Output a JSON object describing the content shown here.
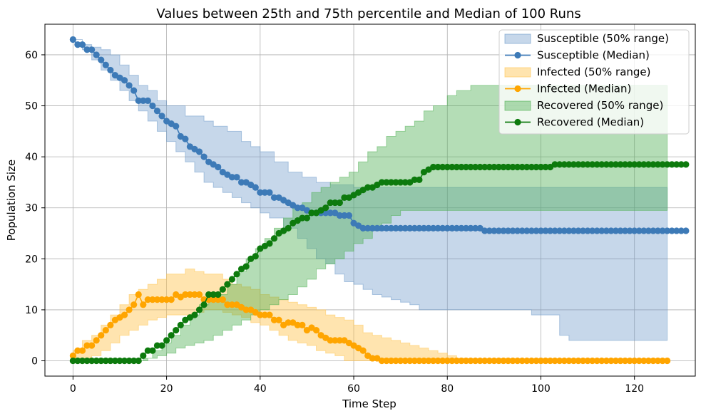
{
  "chart_data": {
    "type": "line",
    "title": "Values between 25th and 75th percentile and Median of 100 Runs",
    "xlabel": "Time Step",
    "ylabel": "Population Size",
    "xlim": [
      -6,
      133
    ],
    "ylim": [
      -3,
      66
    ],
    "xticks": [
      0,
      20,
      40,
      60,
      80,
      100,
      120
    ],
    "yticks": [
      0,
      10,
      20,
      30,
      40,
      50,
      60
    ],
    "grid": true,
    "legend_position": "top-right",
    "x_start": 0,
    "x_step": 1,
    "bands": [
      {
        "name": "Susceptible (50% range)",
        "color": "#6a97c8",
        "opacity": 0.38,
        "upper_keypoints": [
          [
            0,
            63
          ],
          [
            2,
            62
          ],
          [
            4,
            61.5
          ],
          [
            6,
            61
          ],
          [
            8,
            60
          ],
          [
            10,
            58
          ],
          [
            12,
            56
          ],
          [
            14,
            54
          ],
          [
            16,
            53
          ],
          [
            18,
            51
          ],
          [
            20,
            50
          ],
          [
            24,
            48
          ],
          [
            28,
            47
          ],
          [
            30,
            46
          ],
          [
            33,
            45
          ],
          [
            36,
            43
          ],
          [
            38,
            42
          ],
          [
            40,
            41
          ],
          [
            43,
            39
          ],
          [
            46,
            37
          ],
          [
            49,
            36
          ],
          [
            52,
            35
          ],
          [
            55,
            34.5
          ],
          [
            60,
            34
          ],
          [
            62,
            34
          ],
          [
            80,
            34
          ],
          [
            127,
            34
          ]
        ],
        "lower_keypoints": [
          [
            0,
            63
          ],
          [
            2,
            61
          ],
          [
            4,
            59
          ],
          [
            6,
            57
          ],
          [
            8,
            55
          ],
          [
            10,
            53
          ],
          [
            12,
            51
          ],
          [
            14,
            49
          ],
          [
            16,
            47
          ],
          [
            18,
            45
          ],
          [
            20,
            43
          ],
          [
            22,
            41
          ],
          [
            24,
            39
          ],
          [
            26,
            37
          ],
          [
            28,
            35
          ],
          [
            30,
            34
          ],
          [
            32,
            33
          ],
          [
            34,
            32
          ],
          [
            36,
            31
          ],
          [
            38,
            30
          ],
          [
            40,
            29
          ],
          [
            42,
            28
          ],
          [
            45,
            26
          ],
          [
            48,
            24
          ],
          [
            50,
            22
          ],
          [
            52,
            20
          ],
          [
            54,
            19
          ],
          [
            56,
            17
          ],
          [
            58,
            15.5
          ],
          [
            60,
            15
          ],
          [
            62,
            14
          ],
          [
            64,
            13
          ],
          [
            66,
            12.5
          ],
          [
            68,
            12
          ],
          [
            70,
            11.5
          ],
          [
            72,
            11
          ],
          [
            74,
            10
          ],
          [
            80,
            10
          ],
          [
            90,
            10
          ],
          [
            98,
            9
          ],
          [
            104,
            5
          ],
          [
            106,
            4
          ],
          [
            127,
            4
          ]
        ]
      },
      {
        "name": "Infected (50% range)",
        "color": "#ffc34d",
        "opacity": 0.45,
        "upper_keypoints": [
          [
            0,
            2
          ],
          [
            2,
            4
          ],
          [
            4,
            5
          ],
          [
            6,
            7
          ],
          [
            8,
            9
          ],
          [
            10,
            11
          ],
          [
            12,
            13
          ],
          [
            14,
            14
          ],
          [
            16,
            15
          ],
          [
            18,
            16
          ],
          [
            20,
            17
          ],
          [
            22,
            17
          ],
          [
            24,
            18
          ],
          [
            26,
            17.5
          ],
          [
            28,
            17
          ],
          [
            30,
            17
          ],
          [
            32,
            16
          ],
          [
            34,
            15
          ],
          [
            36,
            14.5
          ],
          [
            38,
            14
          ],
          [
            40,
            13
          ],
          [
            42,
            12.5
          ],
          [
            44,
            12
          ],
          [
            46,
            11.5
          ],
          [
            48,
            11
          ],
          [
            50,
            10.5
          ],
          [
            52,
            10
          ],
          [
            54,
            9
          ],
          [
            56,
            8.5
          ],
          [
            58,
            8
          ],
          [
            60,
            7
          ],
          [
            62,
            5.5
          ],
          [
            64,
            5
          ],
          [
            66,
            4.5
          ],
          [
            68,
            4
          ],
          [
            70,
            3.5
          ],
          [
            72,
            3
          ],
          [
            74,
            2.5
          ],
          [
            76,
            2
          ],
          [
            78,
            1.5
          ],
          [
            80,
            1
          ],
          [
            82,
            0.5
          ],
          [
            84,
            0
          ],
          [
            127,
            0
          ]
        ],
        "lower_keypoints": [
          [
            0,
            0
          ],
          [
            2,
            0.5
          ],
          [
            4,
            1
          ],
          [
            6,
            2
          ],
          [
            8,
            3.5
          ],
          [
            10,
            5
          ],
          [
            12,
            6
          ],
          [
            14,
            7
          ],
          [
            16,
            8
          ],
          [
            18,
            8.5
          ],
          [
            20,
            9
          ],
          [
            22,
            9
          ],
          [
            24,
            9
          ],
          [
            26,
            9.5
          ],
          [
            28,
            10
          ],
          [
            30,
            10
          ],
          [
            32,
            9.5
          ],
          [
            34,
            9
          ],
          [
            36,
            8.5
          ],
          [
            38,
            7.5
          ],
          [
            40,
            7
          ],
          [
            42,
            6
          ],
          [
            44,
            5
          ],
          [
            46,
            4
          ],
          [
            48,
            3.5
          ],
          [
            50,
            3
          ],
          [
            52,
            2
          ],
          [
            54,
            1.5
          ],
          [
            56,
            1
          ],
          [
            58,
            0
          ],
          [
            127,
            0
          ]
        ]
      },
      {
        "name": "Recovered (50% range)",
        "color": "#4caf50",
        "opacity": 0.42,
        "upper_keypoints": [
          [
            0,
            0
          ],
          [
            13,
            0
          ],
          [
            15,
            0.5
          ],
          [
            17,
            2
          ],
          [
            19,
            3.5
          ],
          [
            21,
            5
          ],
          [
            23,
            7
          ],
          [
            25,
            9
          ],
          [
            27,
            11
          ],
          [
            29,
            12
          ],
          [
            31,
            13
          ],
          [
            33,
            15
          ],
          [
            35,
            17.5
          ],
          [
            37,
            20
          ],
          [
            39,
            22
          ],
          [
            41,
            24
          ],
          [
            43,
            26
          ],
          [
            45,
            28
          ],
          [
            47,
            30
          ],
          [
            49,
            31
          ],
          [
            51,
            33
          ],
          [
            53,
            34
          ],
          [
            55,
            35
          ],
          [
            57,
            36
          ],
          [
            59,
            37
          ],
          [
            61,
            39
          ],
          [
            63,
            41
          ],
          [
            65,
            42
          ],
          [
            67,
            44
          ],
          [
            69,
            45
          ],
          [
            71,
            46
          ],
          [
            73,
            47
          ],
          [
            75,
            49
          ],
          [
            77,
            50
          ],
          [
            80,
            52
          ],
          [
            82,
            53
          ],
          [
            85,
            54
          ],
          [
            100,
            54
          ],
          [
            127,
            54
          ]
        ],
        "lower_keypoints": [
          [
            0,
            0
          ],
          [
            14,
            0
          ],
          [
            16,
            0.5
          ],
          [
            18,
            1
          ],
          [
            20,
            1.5
          ],
          [
            22,
            2.5
          ],
          [
            24,
            3
          ],
          [
            26,
            3.5
          ],
          [
            28,
            4
          ],
          [
            30,
            5
          ],
          [
            32,
            6
          ],
          [
            34,
            7
          ],
          [
            36,
            8
          ],
          [
            38,
            9
          ],
          [
            40,
            10
          ],
          [
            42,
            11
          ],
          [
            44,
            12
          ],
          [
            46,
            13
          ],
          [
            48,
            14.5
          ],
          [
            50,
            16
          ],
          [
            52,
            18
          ],
          [
            54,
            19
          ],
          [
            56,
            20
          ],
          [
            58,
            21.5
          ],
          [
            60,
            23
          ],
          [
            62,
            24
          ],
          [
            64,
            25.5
          ],
          [
            66,
            27
          ],
          [
            68,
            28.5
          ],
          [
            70,
            29.5
          ],
          [
            80,
            29.5
          ],
          [
            127,
            29.5
          ]
        ]
      }
    ],
    "series": [
      {
        "name": "Susceptible (Median)",
        "color": "#3d7ab7",
        "values": [
          63,
          62,
          62,
          61,
          61,
          60,
          59,
          58,
          57,
          56,
          55.5,
          55,
          54,
          53,
          51,
          51,
          51,
          50,
          49,
          48,
          47,
          46.5,
          46,
          44,
          43.5,
          42,
          41.5,
          41,
          40,
          39,
          38.5,
          38,
          37,
          36.5,
          36,
          36,
          35,
          35,
          34.5,
          34,
          33,
          33,
          33,
          32,
          32,
          31.5,
          31,
          30.5,
          30,
          30,
          29.5,
          29,
          29,
          29,
          29,
          29,
          29,
          28.5,
          28.5,
          28.5,
          27,
          26.5,
          26,
          26,
          26,
          26,
          26,
          26,
          26,
          26,
          26,
          26,
          26,
          26,
          26,
          26,
          26,
          26,
          26,
          26,
          26,
          26,
          26,
          26,
          26,
          26,
          26,
          26,
          25.5,
          25.5,
          25.5,
          25.5,
          25.5,
          25.5,
          25.5,
          25.5,
          25.5,
          25.5,
          25.5,
          25.5,
          25.5,
          25.5,
          25.5,
          25.5,
          25.5,
          25.5,
          25.5,
          25.5,
          25.5,
          25.5,
          25.5,
          25.5,
          25.5,
          25.5,
          25.5,
          25.5,
          25.5,
          25.5,
          25.5,
          25.5,
          25.5,
          25.5,
          25.5,
          25.5,
          25.5,
          25.5,
          25.5,
          25.5,
          25.5,
          25.5,
          25.5,
          25.5
        ]
      },
      {
        "name": "Infected (Median)",
        "color": "#ffa500",
        "values": [
          1,
          2,
          2,
          3,
          3,
          4,
          5,
          6,
          7,
          8,
          8.5,
          9,
          10,
          11,
          13,
          11,
          12,
          12,
          12,
          12,
          12,
          12,
          13,
          12.5,
          13,
          13,
          13,
          13,
          12,
          12,
          12,
          12,
          12,
          11,
          11,
          11,
          10.5,
          10,
          10,
          9.5,
          9,
          9,
          9,
          8,
          8,
          7,
          7.5,
          7.5,
          7,
          7,
          6,
          6.5,
          6,
          5,
          4.5,
          4,
          4,
          4,
          4,
          3.5,
          3,
          2.5,
          2,
          1,
          0.5,
          0.5,
          0,
          0,
          0,
          0,
          0,
          0,
          0,
          0,
          0,
          0,
          0,
          0,
          0,
          0,
          0,
          0,
          0,
          0,
          0,
          0,
          0,
          0,
          0,
          0,
          0,
          0,
          0,
          0,
          0,
          0,
          0,
          0,
          0,
          0,
          0,
          0,
          0,
          0,
          0,
          0,
          0,
          0,
          0,
          0,
          0,
          0,
          0,
          0,
          0,
          0,
          0,
          0,
          0,
          0,
          0,
          0,
          0,
          0,
          0,
          0,
          0,
          0
        ]
      },
      {
        "name": "Recovered (Median)",
        "color": "#0d7a0d",
        "values": [
          0,
          0,
          0,
          0,
          0,
          0,
          0,
          0,
          0,
          0,
          0,
          0,
          0,
          0,
          0,
          1,
          2,
          2,
          3,
          3,
          4,
          5,
          6,
          7,
          8,
          8.5,
          9,
          10,
          11,
          13,
          13,
          13,
          14,
          15,
          16,
          17,
          18,
          18.5,
          20,
          20.5,
          22,
          22.5,
          23,
          24,
          25,
          25.5,
          26,
          27,
          27.5,
          28,
          28,
          29,
          29,
          29.5,
          30,
          31,
          31,
          31,
          32,
          32,
          32.5,
          33,
          33.5,
          34,
          34,
          34.5,
          35,
          35,
          35,
          35,
          35,
          35,
          35,
          35.5,
          35.5,
          37,
          37.5,
          38,
          38,
          38,
          38,
          38,
          38,
          38,
          38,
          38,
          38,
          38,
          38,
          38,
          38,
          38,
          38,
          38,
          38,
          38,
          38,
          38,
          38,
          38,
          38,
          38,
          38,
          38.5,
          38.5,
          38.5,
          38.5,
          38.5,
          38.5,
          38.5,
          38.5,
          38.5,
          38.5,
          38.5,
          38.5,
          38.5,
          38.5,
          38.5,
          38.5,
          38.5,
          38.5,
          38.5,
          38.5,
          38.5,
          38.5,
          38.5,
          38.5,
          38.5,
          38.5,
          38.5,
          38.5,
          38.5
        ]
      }
    ],
    "legend": [
      {
        "label": "Susceptible (50% range)",
        "kind": "band",
        "color": "#6a97c8",
        "opacity": 0.38
      },
      {
        "label": "Susceptible (Median)",
        "kind": "line",
        "color": "#3d7ab7"
      },
      {
        "label": "Infected (50% range)",
        "kind": "band",
        "color": "#ffc34d",
        "opacity": 0.45
      },
      {
        "label": "Infected (Median)",
        "kind": "line",
        "color": "#ffa500"
      },
      {
        "label": "Recovered (50% range)",
        "kind": "band",
        "color": "#4caf50",
        "opacity": 0.42
      },
      {
        "label": "Recovered (Median)",
        "kind": "line",
        "color": "#0d7a0d"
      }
    ]
  }
}
